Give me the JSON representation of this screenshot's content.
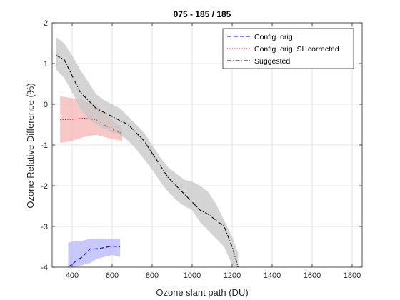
{
  "chart_data": {
    "type": "line",
    "title": "075 - 185 / 185",
    "xlabel": "Ozone slant path (DU)",
    "ylabel": "Ozone Relative Difference (%)",
    "xlim": [
      300,
      1850
    ],
    "ylim": [
      -4,
      2
    ],
    "xticks": [
      400,
      600,
      800,
      1000,
      1200,
      1400,
      1600,
      1800
    ],
    "yticks": [
      -4,
      -3,
      -2,
      -1,
      0,
      1,
      2
    ],
    "grid": true,
    "legend_position": "top-right",
    "series": [
      {
        "name": "Config. orig",
        "style": "dashed",
        "color": "#0000ff",
        "band_color": "#b8b8ff",
        "x": [
          380,
          420,
          450,
          490,
          520,
          560,
          600,
          640
        ],
        "y": [
          -4.0,
          -3.85,
          -3.75,
          -3.55,
          -3.55,
          -3.52,
          -3.48,
          -3.5
        ],
        "band_upper": [
          -3.4,
          -3.35,
          -3.35,
          -3.3,
          -3.3,
          -3.3,
          -3.3,
          -3.3
        ],
        "band_lower": [
          -4.0,
          -4.0,
          -3.95,
          -3.9,
          -3.8,
          -3.75,
          -3.7,
          -3.75
        ]
      },
      {
        "name": "Config. orig, SL corrected",
        "style": "dotted",
        "color": "#ff0000",
        "band_color": "#f6b8b8",
        "x": [
          340,
          400,
          460,
          520,
          560,
          600,
          650
        ],
        "y": [
          -0.38,
          -0.37,
          -0.34,
          -0.38,
          -0.5,
          -0.62,
          -0.72
        ],
        "band_upper": [
          0.2,
          0.15,
          0.1,
          0.0,
          -0.2,
          -0.38,
          -0.6
        ],
        "band_lower": [
          -0.95,
          -0.9,
          -0.8,
          -0.75,
          -0.8,
          -0.85,
          -0.9
        ]
      },
      {
        "name": "Suggested",
        "style": "dashdot",
        "color": "#000000",
        "band_color": "#c8c8c8",
        "x": [
          320,
          360,
          400,
          440,
          480,
          520,
          560,
          600,
          640,
          680,
          720,
          760,
          800,
          840,
          880,
          920,
          960,
          1000,
          1040,
          1080,
          1120,
          1160,
          1200,
          1230
        ],
        "y": [
          1.2,
          1.1,
          0.7,
          0.3,
          0.1,
          -0.1,
          -0.2,
          -0.3,
          -0.4,
          -0.5,
          -0.7,
          -0.9,
          -1.2,
          -1.5,
          -1.8,
          -2.0,
          -2.2,
          -2.4,
          -2.6,
          -2.7,
          -2.85,
          -3.0,
          -3.5,
          -4.0
        ],
        "band_upper": [
          1.65,
          1.5,
          1.2,
          0.85,
          0.55,
          0.25,
          0.1,
          0.0,
          -0.1,
          -0.3,
          -0.5,
          -0.7,
          -1.0,
          -1.3,
          -1.55,
          -1.7,
          -1.85,
          -1.9,
          -2.0,
          -2.15,
          -2.45,
          -2.85,
          -3.25,
          -3.65
        ],
        "band_lower": [
          0.85,
          0.65,
          0.3,
          -0.1,
          -0.35,
          -0.5,
          -0.6,
          -0.7,
          -0.75,
          -0.9,
          -1.1,
          -1.35,
          -1.6,
          -1.9,
          -2.15,
          -2.35,
          -2.5,
          -2.6,
          -2.9,
          -3.1,
          -3.3,
          -3.5,
          -3.95,
          -4.0
        ]
      }
    ]
  }
}
